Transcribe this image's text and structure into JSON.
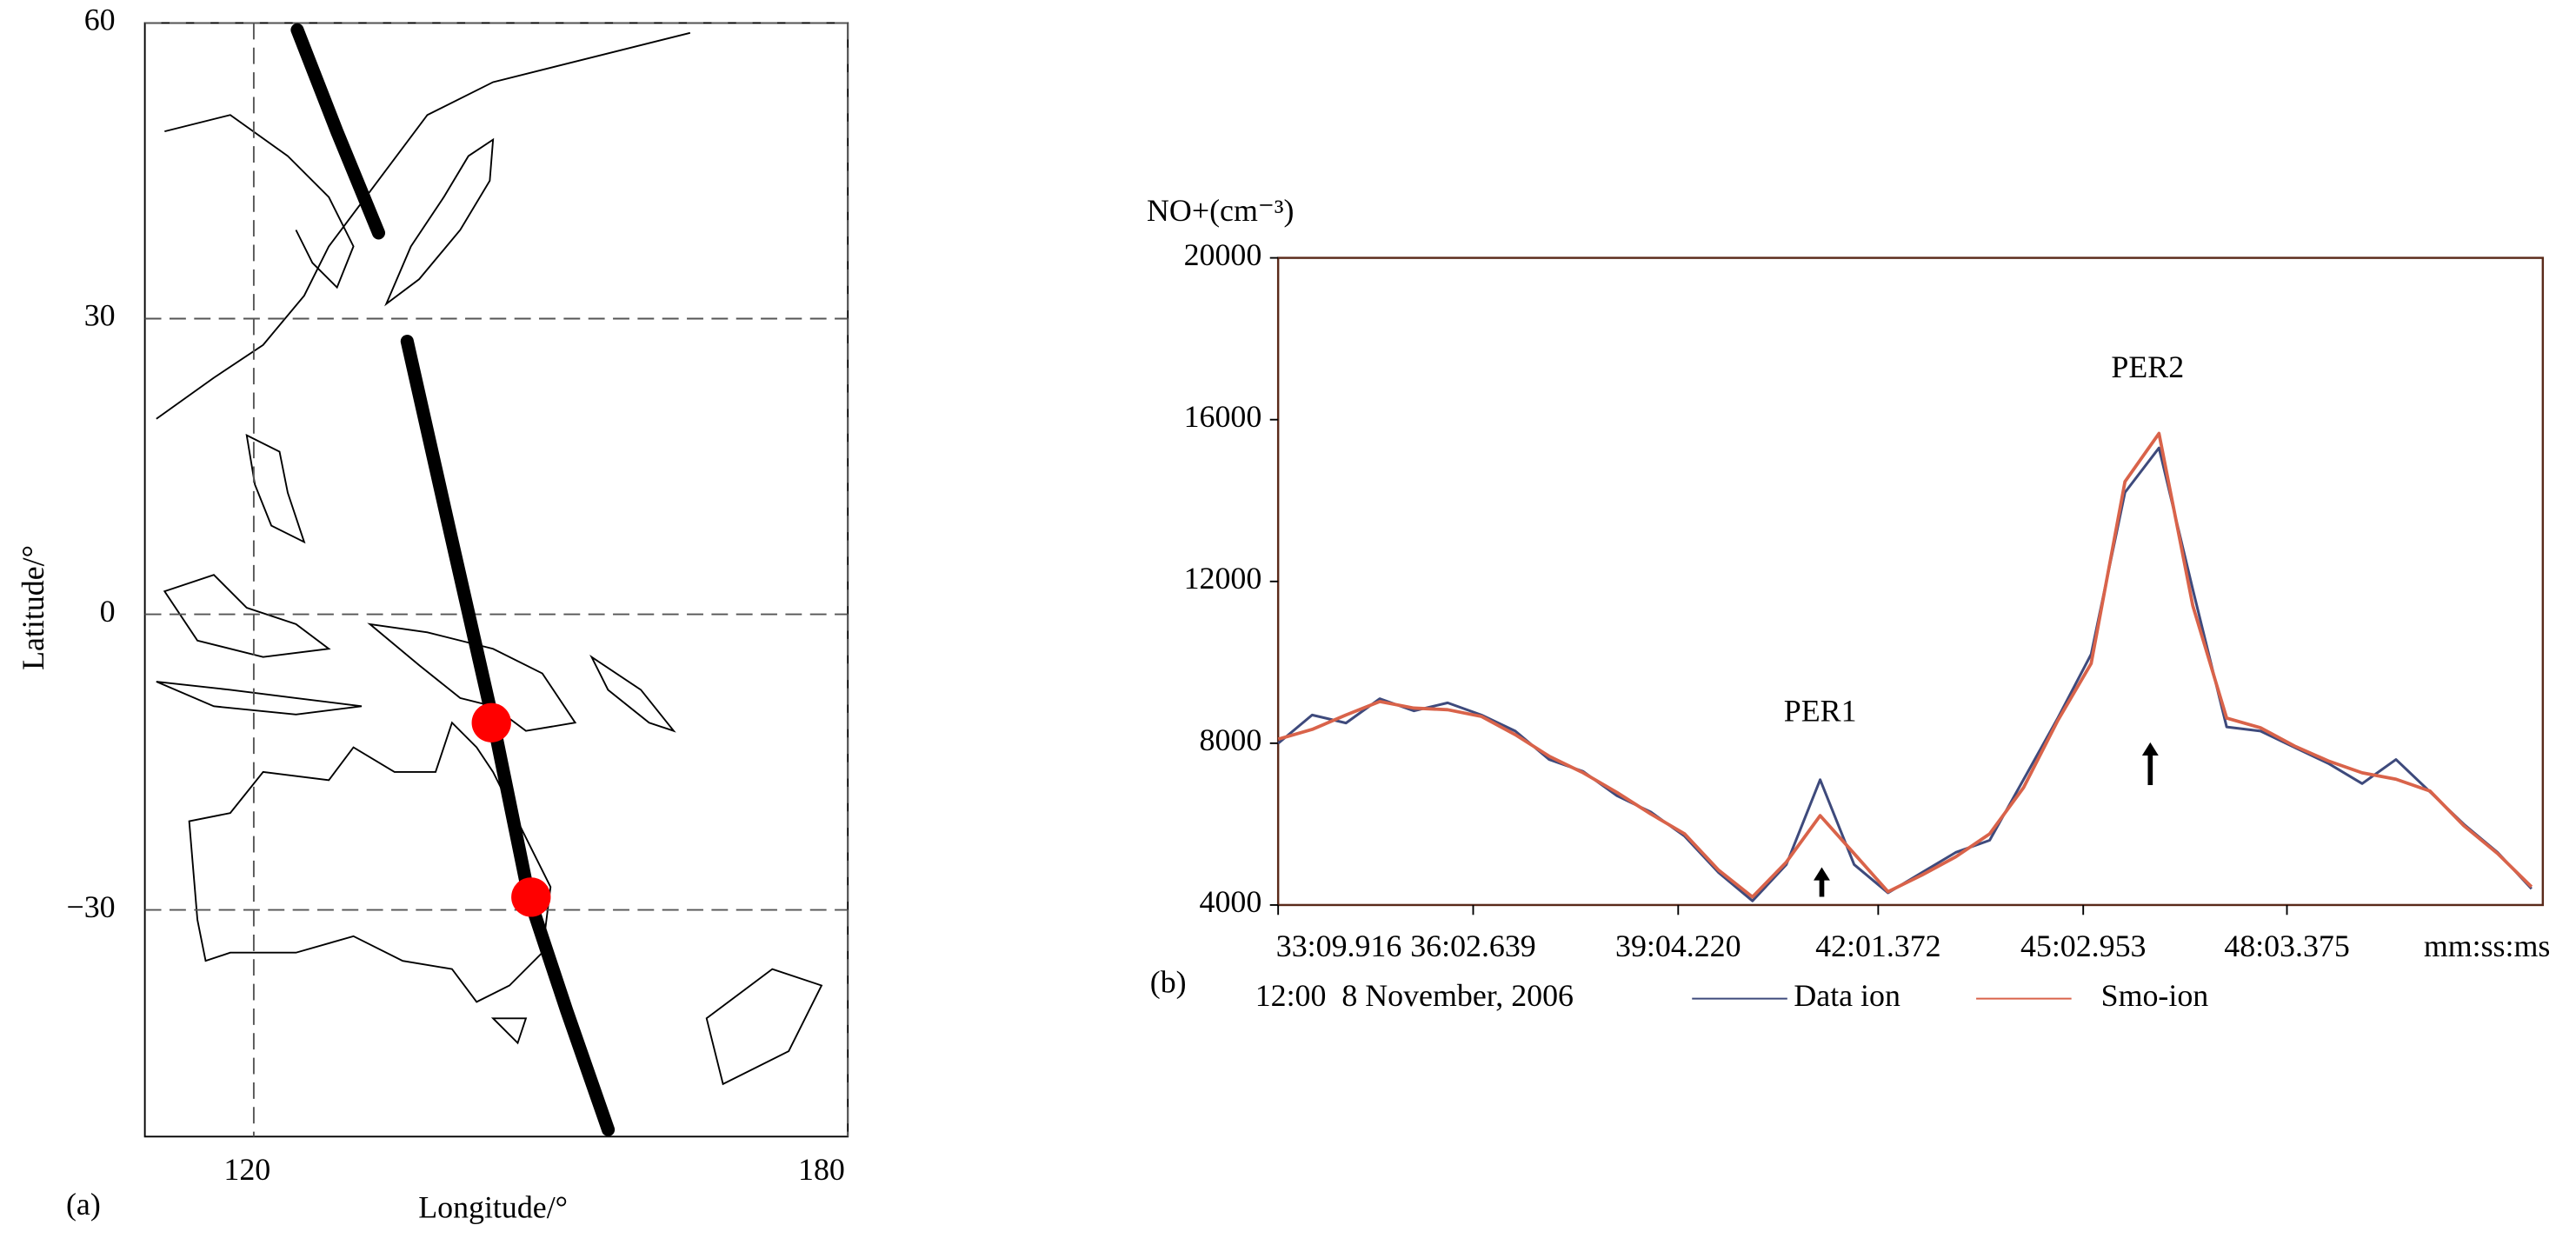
{
  "chart_data": [
    {
      "type": "map",
      "panel_label": "(a)",
      "xlabel": "Longitude/°",
      "ylabel": "Latitude/°",
      "xlim": [
        109,
        180
      ],
      "ylim": [
        -53,
        60
      ],
      "xticks": [
        120,
        180
      ],
      "yticks": [
        {
          "value": -30,
          "label": "−30"
        },
        0,
        30,
        60
      ],
      "grid": true,
      "track": {
        "color": "#000000",
        "x": [
          124.4,
          128.4,
          132.6,
          null,
          135.5,
          139.9,
          144.2,
          147.8,
          151.6,
          155.8
        ],
        "y": [
          59.3,
          49,
          38.7,
          null,
          27.7,
          8,
          -11,
          -28.7,
          -40.2,
          -52.3
        ]
      },
      "points": {
        "color": "#ff0000",
        "x": [
          144,
          148
        ],
        "y": [
          -11,
          -28.7
        ]
      }
    },
    {
      "type": "line",
      "panel_label": "(b)",
      "ylabel": "NO+(cm⁻³)",
      "xlabel": "mm:ss:ms",
      "note": "12:00  8 November, 2006",
      "xlim": [
        1989.916,
        3110
      ],
      "ylim": [
        4000,
        20000
      ],
      "yticks": [
        4000,
        8000,
        12000,
        16000,
        20000
      ],
      "xticks": [
        {
          "value": 1989.916,
          "label": "33:09.916"
        },
        {
          "value": 2162.639,
          "label": "36:02.639"
        },
        {
          "value": 2344.22,
          "label": "39:04.220"
        },
        {
          "value": 2521.372,
          "label": "42:01.372"
        },
        {
          "value": 2702.953,
          "label": "45:02.953"
        },
        {
          "value": 2883.375,
          "label": "48:03.375"
        }
      ],
      "x": [
        1990,
        2020,
        2050,
        2080,
        2110,
        2140,
        2170,
        2200,
        2230,
        2260,
        2290,
        2320,
        2350,
        2380,
        2410,
        2440,
        2470,
        2500,
        2530,
        2560,
        2590,
        2620,
        2650,
        2680,
        2710,
        2740,
        2770,
        2800,
        2830,
        2860,
        2890,
        2920,
        2950,
        2980,
        3010,
        3040,
        3070,
        3100
      ],
      "series": [
        {
          "name": "Data ion",
          "color": "#3e4a7c",
          "values": [
            8000,
            8700,
            8500,
            9100,
            8800,
            9000,
            8700,
            8300,
            7600,
            7300,
            6700,
            6300,
            5700,
            4800,
            4100,
            5000,
            7100,
            5000,
            4300,
            4800,
            5300,
            5600,
            7100,
            8600,
            10200,
            14200,
            15300,
            11800,
            8400,
            8300,
            7900,
            7500,
            7000,
            7600,
            6800,
            6000,
            5300,
            4400
          ]
        },
        {
          "name": "Smo-ion",
          "color": "#d9634a",
          "values": [
            8100,
            8340,
            8700,
            9030,
            8870,
            8830,
            8660,
            8210,
            7680,
            7270,
            6780,
            6250,
            5760,
            4860,
            4200,
            5060,
            6210,
            5270,
            4330,
            4740,
            5190,
            5760,
            6900,
            8540,
            9970,
            14470,
            15660,
            11400,
            8620,
            8380,
            7930,
            7560,
            7270,
            7110,
            6820,
            5960,
            5270,
            4450
          ]
        }
      ],
      "annotations": [
        {
          "text": "PER1",
          "x": 2470,
          "y": 7100
        },
        {
          "text": "PER2",
          "x": 2760,
          "y": 15600
        }
      ]
    }
  ]
}
